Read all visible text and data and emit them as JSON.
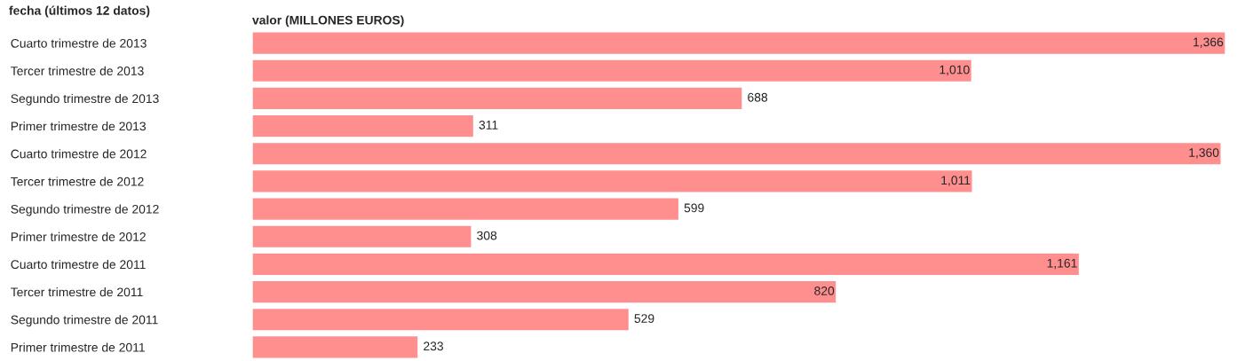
{
  "chart_data": {
    "type": "bar",
    "orientation": "horizontal",
    "xlabel": "valor (MILLONES EUROS)",
    "ylabel": "fecha (últimos 12 datos)",
    "categories": [
      "Cuarto trimestre de 2013",
      "Tercer trimestre de 2013",
      "Segundo trimestre de 2013",
      "Primer trimestre de 2013",
      "Cuarto trimestre de 2012",
      "Tercer trimestre de 2012",
      "Segundo trimestre de 2012",
      "Primer trimestre de 2012",
      "Cuarto trimestre de 2011",
      "Tercer trimestre de 2011",
      "Segundo trimestre de 2011",
      "Primer trimestre de 2011"
    ],
    "values": [
      1366,
      1010,
      688,
      311,
      1360,
      1011,
      599,
      308,
      1161,
      820,
      529,
      233
    ],
    "value_labels": [
      "1,366",
      "1,010",
      "688",
      "311",
      "1,360",
      "1,011",
      "599",
      "308",
      "1,161",
      "820",
      "529",
      "233"
    ],
    "color": "#ff8f8f",
    "tick_labels": "y",
    "grid": false,
    "legend": false
  }
}
